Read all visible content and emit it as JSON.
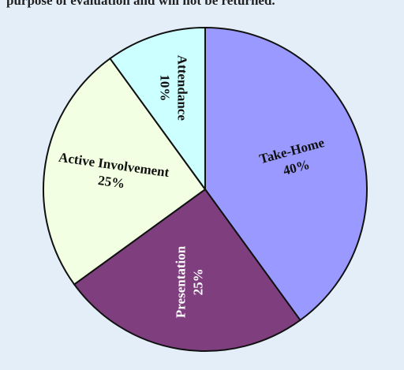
{
  "header": {
    "text": "purpose of evaluation and will not be returned."
  },
  "chart_data": {
    "type": "pie",
    "categories": [
      "Take-Home",
      "Presentation",
      "Active Involvement",
      "Attendance"
    ],
    "values": [
      40,
      25,
      25,
      10
    ],
    "value_labels": [
      "40%",
      "25%",
      "25%",
      "10%"
    ],
    "colors": [
      "#9999ff",
      "#7f3f7f",
      "#f2ffe2",
      "#ccffff"
    ]
  }
}
